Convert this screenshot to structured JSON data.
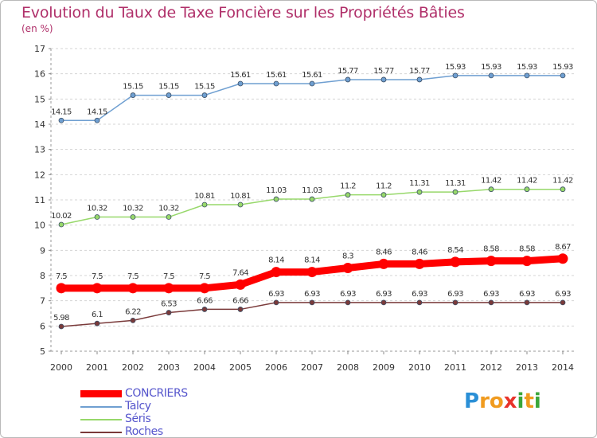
{
  "chart_data": {
    "type": "line",
    "title": "Evolution du Taux de Taxe Foncière sur les Propriétés Bâties",
    "subtitle": "(en %)",
    "x": [
      "2000",
      "2001",
      "2002",
      "2003",
      "2004",
      "2005",
      "2006",
      "2007",
      "2008",
      "2009",
      "2010",
      "2011",
      "2012",
      "2013",
      "2014"
    ],
    "ylim": [
      5,
      17
    ],
    "yticks": [
      "5",
      "6",
      "7",
      "8",
      "9",
      "10",
      "11",
      "12",
      "13",
      "14",
      "15",
      "16",
      "17"
    ],
    "series": [
      {
        "name": "CONCRIERS",
        "color": "#ff0000",
        "values": [
          7.5,
          7.5,
          7.5,
          7.5,
          7.5,
          7.64,
          8.14,
          8.14,
          8.3,
          8.46,
          8.46,
          8.54,
          8.58,
          8.58,
          8.67
        ],
        "labels": [
          "7.5",
          "7.5",
          "7.5",
          "7.5",
          "7.5",
          "7.64",
          "8.14",
          "8.14",
          "8.3",
          "8.46",
          "8.46",
          "8.54",
          "8.58",
          "8.58",
          "8.67"
        ]
      },
      {
        "name": "Talcy",
        "color": "#6f9fd1",
        "values": [
          14.15,
          14.15,
          15.15,
          15.15,
          15.15,
          15.61,
          15.61,
          15.61,
          15.77,
          15.77,
          15.77,
          15.93,
          15.93,
          15.93,
          15.93
        ],
        "labels": [
          "14.15",
          "14.15",
          "15.15",
          "15.15",
          "15.15",
          "15.61",
          "15.61",
          "15.61",
          "15.77",
          "15.77",
          "15.77",
          "15.93",
          "15.93",
          "15.93",
          "15.93"
        ]
      },
      {
        "name": "Séris",
        "color": "#97d86a",
        "values": [
          10.02,
          10.32,
          10.32,
          10.32,
          10.81,
          10.81,
          11.03,
          11.03,
          11.2,
          11.2,
          11.31,
          11.31,
          11.42,
          11.42,
          11.42
        ],
        "labels": [
          "10.02",
          "10.32",
          "10.32",
          "10.32",
          "10.81",
          "10.81",
          "11.03",
          "11.03",
          "11.2",
          "11.2",
          "11.31",
          "11.31",
          "11.42",
          "11.42",
          "11.42"
        ]
      },
      {
        "name": "Roches",
        "color": "#7a3a3a",
        "values": [
          5.98,
          6.1,
          6.22,
          6.53,
          6.66,
          6.66,
          6.93,
          6.93,
          6.93,
          6.93,
          6.93,
          6.93,
          6.93,
          6.93,
          6.93
        ],
        "labels": [
          "5.98",
          "6.1",
          "6.22",
          "6.53",
          "6.66",
          "6.66",
          "6.93",
          "6.93",
          "6.93",
          "6.93",
          "6.93",
          "6.93",
          "6.93",
          "6.93",
          "6.93"
        ]
      }
    ],
    "grid": "horizontal-dashed",
    "legend": "bottom-left"
  },
  "logo": {
    "letters": [
      "P",
      "r",
      "o",
      "x",
      "i",
      "t",
      "i"
    ],
    "colors": [
      "#2a8fd6",
      "#f09b1f",
      "#f09b1f",
      "#e8332a",
      "#3aa63a",
      "#f09b1f",
      "#3aa63a"
    ]
  }
}
